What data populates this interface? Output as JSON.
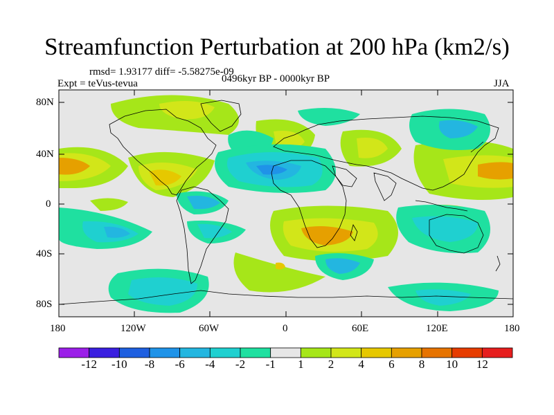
{
  "plot": {
    "title": "Streamfunction Perturbation at 200 hPa (km2/s)",
    "stats_line": "rmsd= 1.93177 diff= -5.58275e-09",
    "experiment": "Expt = teVus-tevua",
    "period": "0496kyr BP - 0000kyr BP",
    "season": "JJA"
  },
  "axes": {
    "y_ticks": [
      "80N",
      "40N",
      "0",
      "40S",
      "80S"
    ],
    "x_ticks": [
      "180",
      "120W",
      "60W",
      "0",
      "60E",
      "120E",
      "180"
    ]
  },
  "colorbar": {
    "labels": [
      "-12",
      "-10",
      "-8",
      "-6",
      "-4",
      "-2",
      "-1",
      "1",
      "2",
      "4",
      "6",
      "8",
      "10",
      "12"
    ],
    "colors": [
      "#9b1fe8",
      "#3a1fe0",
      "#1e5fe0",
      "#1f93e8",
      "#23b6e0",
      "#1fd0d0",
      "#1fe0a0",
      "#e6e6e6",
      "#a6e619",
      "#d2e619",
      "#e6c800",
      "#e6a000",
      "#e67300",
      "#e63c00",
      "#e61e1e"
    ]
  },
  "palette": {
    "background": "#e6e6e6",
    "coast": "#000000"
  }
}
